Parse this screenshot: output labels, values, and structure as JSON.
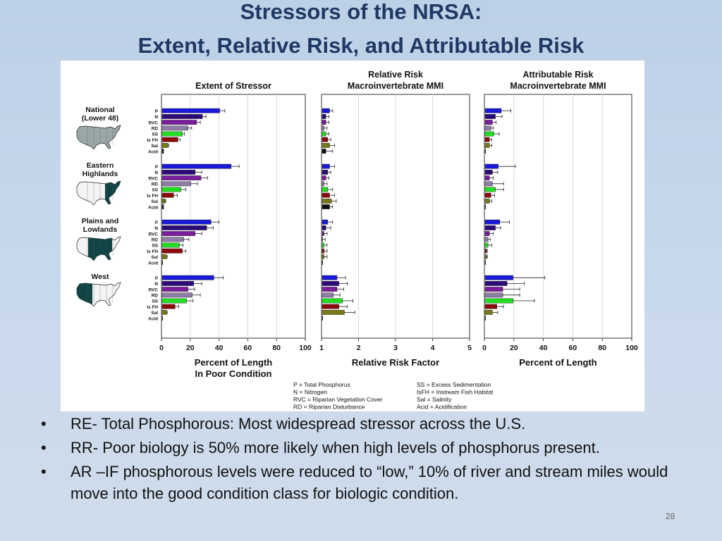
{
  "slide": {
    "title_line1": "Stressors of the NRSA:",
    "title_line2": "Extent, Relative Risk, and Attributable Risk",
    "bullets": [
      "RE- Total Phosphorous: Most widespread stressor across the U.S.",
      "RR- Poor biology is 50% more likely when high levels of phosphorus present.",
      "AR –IF phosphorous levels were reduced to “low,” 10% of river and stream miles would move into the good condition class for biologic condition."
    ],
    "slide_number": "28"
  },
  "colors": {
    "title": "#1f3864",
    "series": [
      "#1a1ad6",
      "#2c0a7a",
      "#7a1e9e",
      "#8e7ea6",
      "#22dd22",
      "#8b0a0a",
      "#7a7a18",
      "#111111"
    ]
  },
  "chart_data": {
    "type": "bar",
    "orientation": "horizontal",
    "stressors": [
      "P",
      "N",
      "RVC",
      "RD",
      "SS",
      "IsFH",
      "Sal",
      "Acid"
    ],
    "regions": [
      {
        "name": "National\n(Lower 48)",
        "map": "us-map-national"
      },
      {
        "name": "Eastern\nHighlands",
        "map": "us-map-eastern-highlands"
      },
      {
        "name": "Plains and\nLowlands",
        "map": "us-map-plains-lowlands"
      },
      {
        "name": "West",
        "map": "us-map-west"
      }
    ],
    "panels": [
      {
        "title": "Extent of Stressor",
        "xlabel": "Percent of Length\nIn Poor Condition",
        "xlim": [
          0,
          100
        ],
        "xticks": [
          0,
          20,
          40,
          60,
          80,
          100
        ],
        "values": [
          [
            40,
            28,
            24,
            18,
            14,
            11,
            4,
            1
          ],
          [
            48,
            23,
            27,
            20,
            13,
            8,
            2,
            1
          ],
          [
            34,
            31,
            23,
            15,
            12,
            14,
            3,
            0
          ],
          [
            36,
            22,
            18,
            21,
            17,
            9,
            3,
            0
          ]
        ],
        "errors": [
          [
            4,
            3,
            3,
            3,
            2,
            2,
            1,
            0
          ],
          [
            6,
            5,
            5,
            5,
            4,
            3,
            1,
            0
          ],
          [
            6,
            5,
            5,
            4,
            3,
            3,
            1,
            0
          ],
          [
            7,
            6,
            5,
            6,
            5,
            3,
            1,
            0
          ]
        ]
      },
      {
        "title": "Relative Risk\nMacroinvertebrate MMI",
        "xlabel": "Relative Risk Factor",
        "xlim": [
          1,
          5
        ],
        "xticks": [
          1,
          2,
          3,
          4,
          5
        ],
        "values": [
          [
            1.2,
            1.1,
            1.1,
            1.05,
            1.1,
            1.15,
            1.2,
            1.1
          ],
          [
            1.2,
            1.15,
            1.1,
            1.05,
            1.15,
            1.2,
            1.25,
            1.2
          ],
          [
            1.15,
            1.1,
            1.05,
            1.0,
            1.05,
            1.05,
            1.05,
            1.0
          ],
          [
            1.4,
            1.45,
            1.4,
            1.3,
            1.55,
            1.45,
            1.6,
            1.0
          ]
        ],
        "errors": [
          [
            0.1,
            0.1,
            0.1,
            0.1,
            0.1,
            0.1,
            0.15,
            0.2
          ],
          [
            0.15,
            0.1,
            0.1,
            0.1,
            0.15,
            0.15,
            0.15,
            0.1
          ],
          [
            0.15,
            0.15,
            0.1,
            0.1,
            0.1,
            0.1,
            0.1,
            0.0
          ],
          [
            0.25,
            0.25,
            0.2,
            0.2,
            0.3,
            0.25,
            0.3,
            0.0
          ]
        ]
      },
      {
        "title": "Attributable Risk\nMacroinvertebrate MMI",
        "xlabel": "Percent of Length",
        "xlim": [
          0,
          100
        ],
        "xticks": [
          0,
          20,
          40,
          60,
          80,
          100
        ],
        "values": [
          [
            11,
            7,
            5,
            4,
            6,
            3,
            3,
            0
          ],
          [
            9,
            5,
            3,
            5,
            7,
            4,
            3,
            0
          ],
          [
            10,
            7,
            3,
            2,
            2,
            1,
            1,
            0
          ],
          [
            19,
            15,
            12,
            12,
            19,
            8,
            5,
            0
          ]
        ],
        "errors": [
          [
            7,
            5,
            3,
            2,
            4,
            2,
            2,
            0
          ],
          [
            12,
            4,
            3,
            8,
            6,
            3,
            2,
            0
          ],
          [
            7,
            4,
            3,
            2,
            3,
            1,
            1,
            0
          ],
          [
            22,
            12,
            12,
            12,
            15,
            5,
            4,
            0
          ]
        ]
      }
    ],
    "legend": [
      "P = Total Phosphorus",
      "N = Nitrogen",
      "RVC = Riparian Vegetation Cover",
      "RD = Riparian Disturbance",
      "SS = Excess Sedimentation",
      "IsFH = Instream Fish Habitat",
      "Sal = Salinity",
      "Acid = Acidification"
    ],
    "grid": true
  }
}
